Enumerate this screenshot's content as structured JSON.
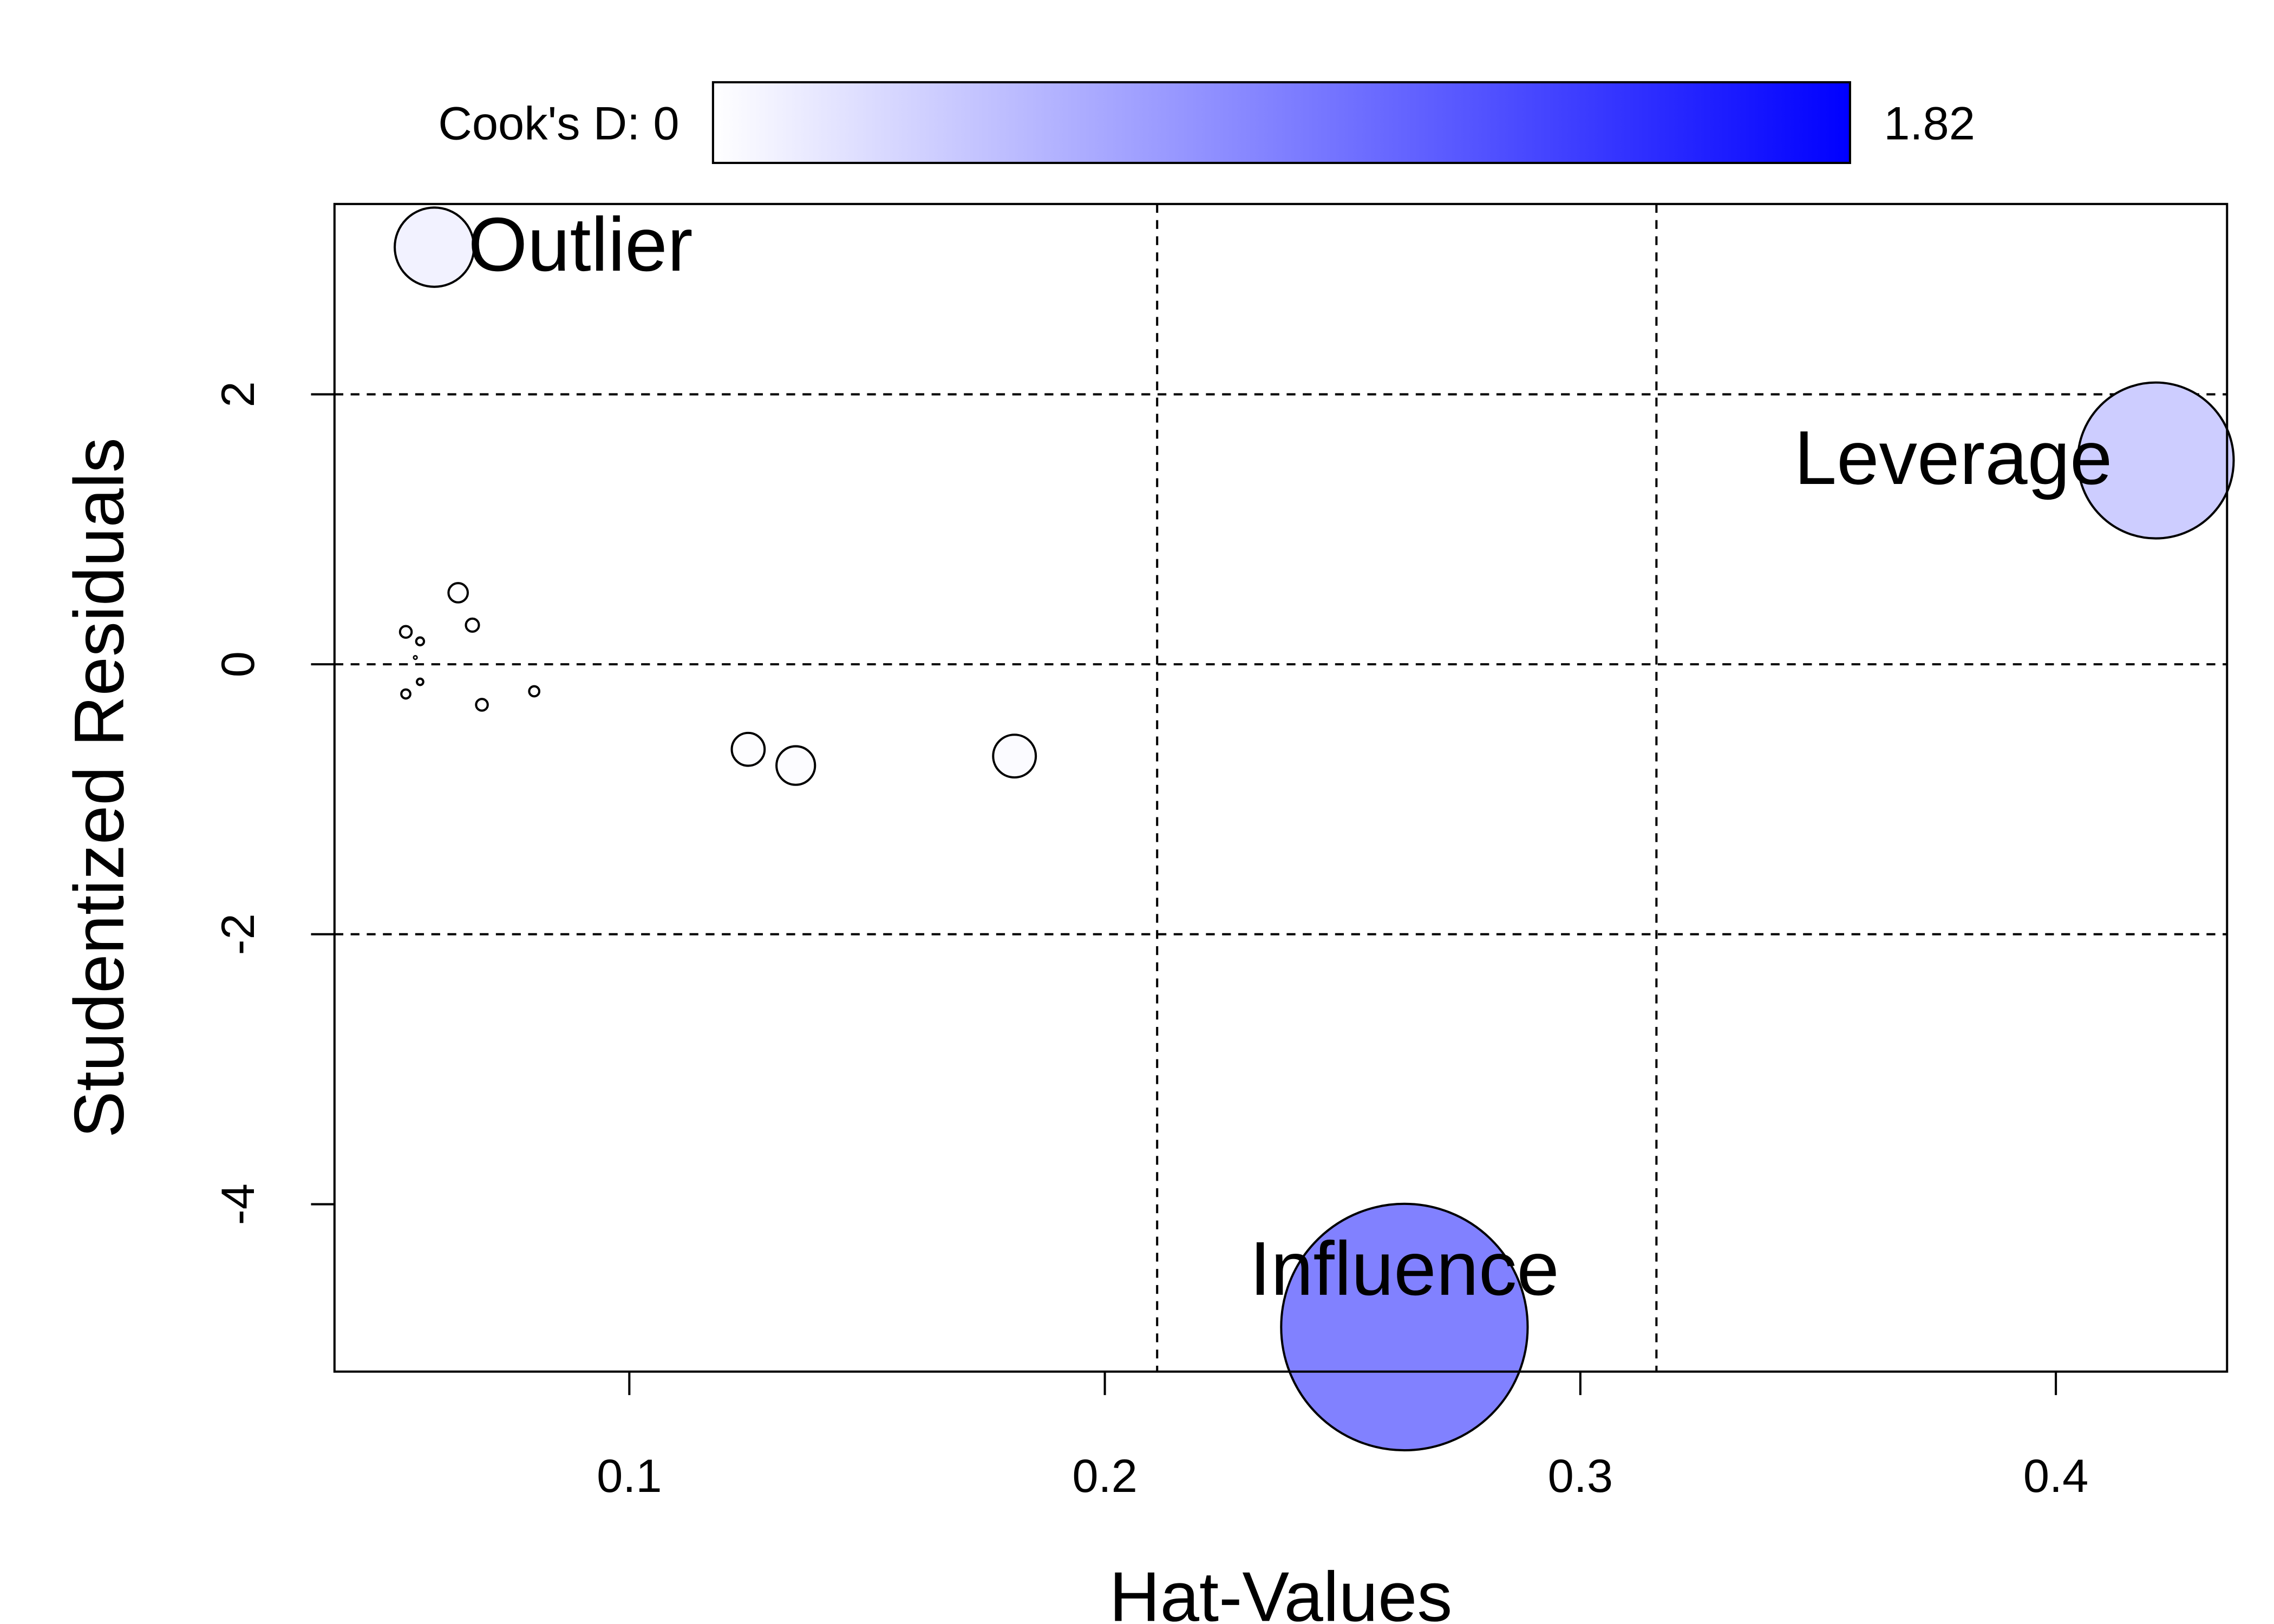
{
  "chart_data": {
    "type": "scatter",
    "title": "",
    "xlabel": "Hat-Values",
    "ylabel": "Studentized Residuals",
    "xlim": [
      0.038,
      0.436
    ],
    "ylim": [
      -5.24,
      3.41
    ],
    "xticks": [
      0.1,
      0.2,
      0.3,
      0.4
    ],
    "xtick_labels": [
      "0.1",
      "0.2",
      "0.3",
      "0.4"
    ],
    "yticks": [
      -4,
      -2,
      0,
      2
    ],
    "ytick_labels": [
      "-4",
      "-2",
      "0",
      "2"
    ],
    "reference_lines": {
      "horizontal": [
        -2,
        0,
        2
      ],
      "vertical": [
        0.211,
        0.316
      ]
    },
    "colorbar": {
      "label": "Cook's D: 0",
      "min": 0,
      "max": 1.82,
      "max_label": "1.82",
      "color_low": "#ffffff",
      "color_high": "#0000ff"
    },
    "points": [
      {
        "x": 0.059,
        "y": 3.09,
        "cookd": 0.093,
        "label": "Outlier"
      },
      {
        "x": 0.421,
        "y": 1.51,
        "cookd": 0.36,
        "label": "Leverage"
      },
      {
        "x": 0.263,
        "y": -4.91,
        "cookd": 0.9,
        "label": "Influence"
      },
      {
        "x": 0.064,
        "y": 0.53,
        "cookd": 0.0055
      },
      {
        "x": 0.067,
        "y": 0.29,
        "cookd": 0.0025
      },
      {
        "x": 0.053,
        "y": 0.24,
        "cookd": 0.002
      },
      {
        "x": 0.056,
        "y": 0.17,
        "cookd": 0.0009
      },
      {
        "x": 0.053,
        "y": -0.22,
        "cookd": 0.0012
      },
      {
        "x": 0.056,
        "y": -0.13,
        "cookd": 0.0006
      },
      {
        "x": 0.069,
        "y": -0.3,
        "cookd": 0.002
      },
      {
        "x": 0.08,
        "y": -0.2,
        "cookd": 0.0015
      },
      {
        "x": 0.055,
        "y": 0.05,
        "cookd": 0.0001
      },
      {
        "x": 0.125,
        "y": -0.63,
        "cookd": 0.016
      },
      {
        "x": 0.135,
        "y": -0.75,
        "cookd": 0.022
      },
      {
        "x": 0.181,
        "y": -0.68,
        "cookd": 0.027
      }
    ]
  }
}
